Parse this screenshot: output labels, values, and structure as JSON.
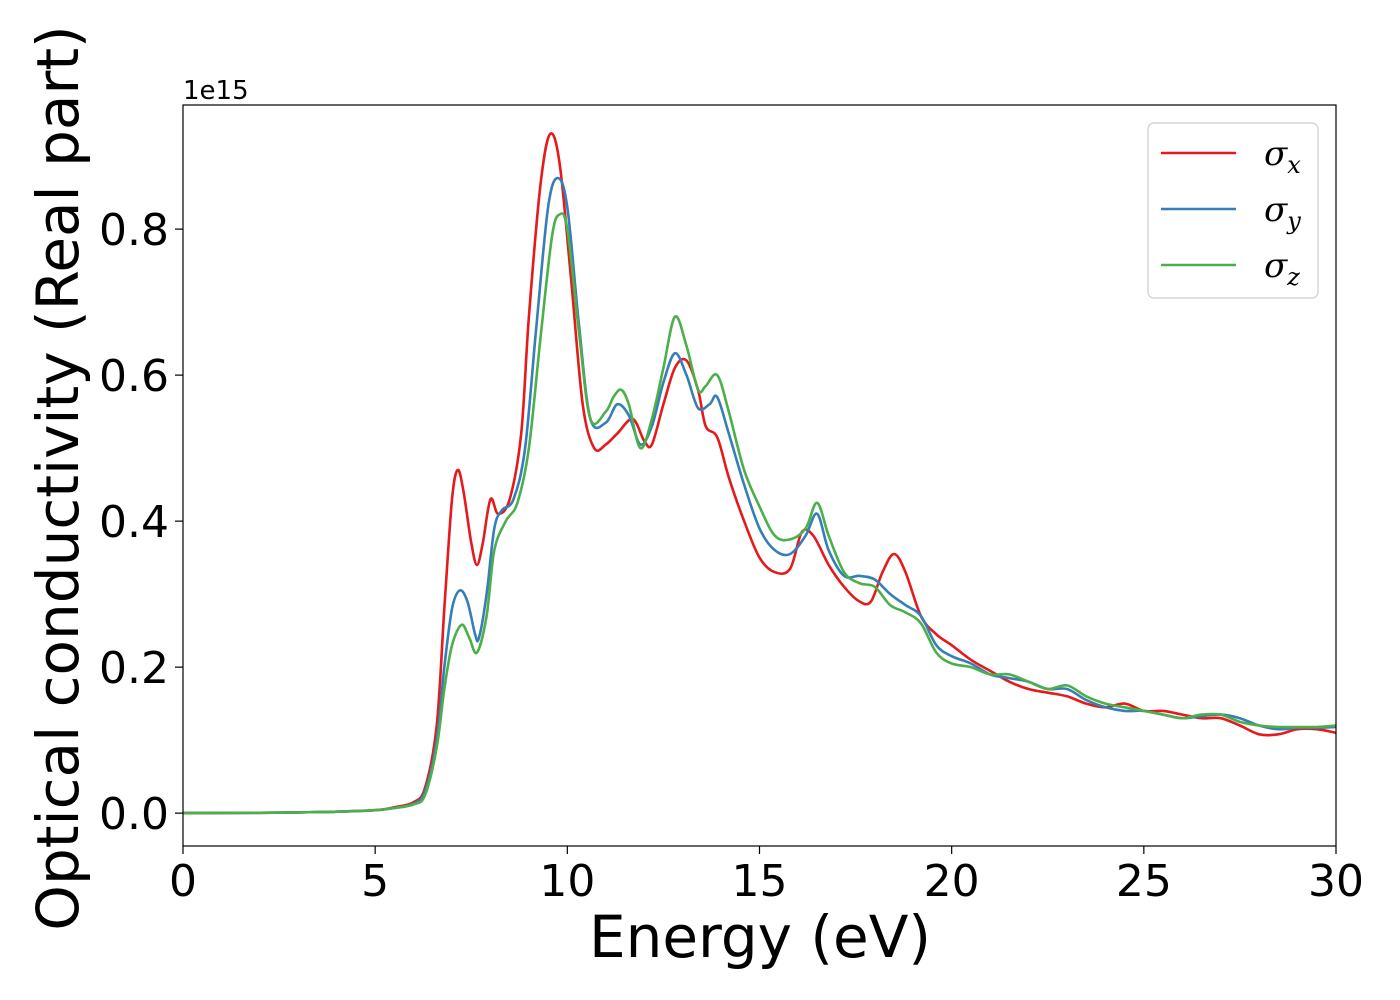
{
  "chart_data": {
    "type": "line",
    "title": "",
    "xlabel": "Energy (eV)",
    "ylabel": "Optical conductivity (Real part)",
    "y_offset_label": "1e15",
    "xlim": [
      0,
      30
    ],
    "ylim": [
      -0.045,
      0.97
    ],
    "xticks": [
      0,
      5,
      10,
      15,
      20,
      25,
      30
    ],
    "xtick_labels": [
      "0",
      "5",
      "10",
      "15",
      "20",
      "25",
      "30"
    ],
    "yticks": [
      0.0,
      0.2,
      0.4,
      0.6,
      0.8
    ],
    "ytick_labels": [
      "0.0",
      "0.2",
      "0.4",
      "0.6",
      "0.8"
    ],
    "grid": false,
    "legend_position": "top-right",
    "series": [
      {
        "name": "σx",
        "legend_symbol": "σ",
        "legend_sub": "x",
        "color": "#e41a1c",
        "points": [
          [
            0,
            0.0
          ],
          [
            2,
            0.0005
          ],
          [
            3,
            0.001
          ],
          [
            4,
            0.002
          ],
          [
            5,
            0.004
          ],
          [
            5.5,
            0.008
          ],
          [
            6.0,
            0.015
          ],
          [
            6.3,
            0.035
          ],
          [
            6.6,
            0.12
          ],
          [
            6.8,
            0.28
          ],
          [
            7.0,
            0.43
          ],
          [
            7.15,
            0.47
          ],
          [
            7.3,
            0.44
          ],
          [
            7.5,
            0.37
          ],
          [
            7.65,
            0.34
          ],
          [
            7.8,
            0.37
          ],
          [
            8.0,
            0.43
          ],
          [
            8.2,
            0.41
          ],
          [
            8.5,
            0.43
          ],
          [
            8.8,
            0.52
          ],
          [
            9.0,
            0.68
          ],
          [
            9.3,
            0.86
          ],
          [
            9.55,
            0.93
          ],
          [
            9.8,
            0.89
          ],
          [
            10.1,
            0.73
          ],
          [
            10.4,
            0.56
          ],
          [
            10.7,
            0.5
          ],
          [
            11.0,
            0.505
          ],
          [
            11.3,
            0.52
          ],
          [
            11.7,
            0.54
          ],
          [
            12.0,
            0.51
          ],
          [
            12.2,
            0.505
          ],
          [
            12.5,
            0.56
          ],
          [
            12.8,
            0.61
          ],
          [
            13.1,
            0.62
          ],
          [
            13.4,
            0.58
          ],
          [
            13.6,
            0.53
          ],
          [
            13.9,
            0.515
          ],
          [
            14.2,
            0.46
          ],
          [
            14.6,
            0.4
          ],
          [
            15.0,
            0.35
          ],
          [
            15.4,
            0.33
          ],
          [
            15.8,
            0.335
          ],
          [
            16.1,
            0.385
          ],
          [
            16.4,
            0.38
          ],
          [
            16.8,
            0.34
          ],
          [
            17.2,
            0.31
          ],
          [
            17.6,
            0.29
          ],
          [
            17.9,
            0.29
          ],
          [
            18.2,
            0.33
          ],
          [
            18.5,
            0.355
          ],
          [
            18.8,
            0.33
          ],
          [
            19.2,
            0.27
          ],
          [
            19.6,
            0.245
          ],
          [
            20.0,
            0.23
          ],
          [
            20.5,
            0.21
          ],
          [
            21.0,
            0.195
          ],
          [
            21.5,
            0.18
          ],
          [
            22.0,
            0.17
          ],
          [
            22.5,
            0.165
          ],
          [
            23.0,
            0.16
          ],
          [
            23.5,
            0.15
          ],
          [
            24.0,
            0.145
          ],
          [
            24.5,
            0.15
          ],
          [
            25.0,
            0.14
          ],
          [
            25.5,
            0.14
          ],
          [
            26.0,
            0.135
          ],
          [
            26.5,
            0.13
          ],
          [
            27.0,
            0.13
          ],
          [
            27.5,
            0.12
          ],
          [
            28.0,
            0.108
          ],
          [
            28.5,
            0.108
          ],
          [
            29.0,
            0.115
          ],
          [
            29.5,
            0.115
          ],
          [
            30.0,
            0.11
          ]
        ]
      },
      {
        "name": "σy",
        "legend_symbol": "σ",
        "legend_sub": "y",
        "color": "#377eb8",
        "points": [
          [
            0,
            0.0
          ],
          [
            2,
            0.0005
          ],
          [
            3,
            0.001
          ],
          [
            4,
            0.002
          ],
          [
            5,
            0.004
          ],
          [
            5.5,
            0.007
          ],
          [
            6.0,
            0.013
          ],
          [
            6.3,
            0.03
          ],
          [
            6.6,
            0.1
          ],
          [
            6.8,
            0.2
          ],
          [
            7.0,
            0.28
          ],
          [
            7.2,
            0.305
          ],
          [
            7.4,
            0.29
          ],
          [
            7.6,
            0.245
          ],
          [
            7.7,
            0.24
          ],
          [
            7.9,
            0.3
          ],
          [
            8.1,
            0.39
          ],
          [
            8.3,
            0.415
          ],
          [
            8.6,
            0.43
          ],
          [
            8.9,
            0.5
          ],
          [
            9.2,
            0.67
          ],
          [
            9.5,
            0.83
          ],
          [
            9.75,
            0.87
          ],
          [
            10.0,
            0.83
          ],
          [
            10.3,
            0.67
          ],
          [
            10.6,
            0.54
          ],
          [
            11.0,
            0.535
          ],
          [
            11.3,
            0.56
          ],
          [
            11.6,
            0.545
          ],
          [
            11.9,
            0.505
          ],
          [
            12.2,
            0.53
          ],
          [
            12.5,
            0.59
          ],
          [
            12.8,
            0.63
          ],
          [
            13.1,
            0.6
          ],
          [
            13.4,
            0.555
          ],
          [
            13.7,
            0.56
          ],
          [
            13.9,
            0.57
          ],
          [
            14.2,
            0.52
          ],
          [
            14.6,
            0.45
          ],
          [
            15.0,
            0.39
          ],
          [
            15.4,
            0.36
          ],
          [
            15.8,
            0.355
          ],
          [
            16.2,
            0.38
          ],
          [
            16.5,
            0.41
          ],
          [
            16.8,
            0.36
          ],
          [
            17.2,
            0.325
          ],
          [
            17.6,
            0.325
          ],
          [
            18.0,
            0.32
          ],
          [
            18.4,
            0.3
          ],
          [
            18.8,
            0.285
          ],
          [
            19.2,
            0.27
          ],
          [
            19.6,
            0.23
          ],
          [
            20.0,
            0.215
          ],
          [
            20.5,
            0.205
          ],
          [
            21.0,
            0.19
          ],
          [
            21.5,
            0.185
          ],
          [
            22.0,
            0.18
          ],
          [
            22.5,
            0.17
          ],
          [
            23.0,
            0.17
          ],
          [
            23.5,
            0.155
          ],
          [
            24.0,
            0.145
          ],
          [
            24.5,
            0.14
          ],
          [
            25.0,
            0.14
          ],
          [
            25.5,
            0.135
          ],
          [
            26.0,
            0.13
          ],
          [
            26.5,
            0.133
          ],
          [
            27.0,
            0.135
          ],
          [
            27.5,
            0.13
          ],
          [
            28.0,
            0.12
          ],
          [
            28.5,
            0.115
          ],
          [
            29.0,
            0.117
          ],
          [
            29.5,
            0.117
          ],
          [
            30.0,
            0.118
          ]
        ]
      },
      {
        "name": "σz",
        "legend_symbol": "σ",
        "legend_sub": "z",
        "color": "#4daf4a",
        "points": [
          [
            0,
            0.0
          ],
          [
            2,
            0.0005
          ],
          [
            3,
            0.001
          ],
          [
            4,
            0.002
          ],
          [
            5,
            0.004
          ],
          [
            5.5,
            0.007
          ],
          [
            6.0,
            0.012
          ],
          [
            6.3,
            0.025
          ],
          [
            6.6,
            0.09
          ],
          [
            6.8,
            0.17
          ],
          [
            7.0,
            0.23
          ],
          [
            7.25,
            0.258
          ],
          [
            7.45,
            0.24
          ],
          [
            7.65,
            0.22
          ],
          [
            7.9,
            0.27
          ],
          [
            8.1,
            0.36
          ],
          [
            8.4,
            0.4
          ],
          [
            8.7,
            0.425
          ],
          [
            9.0,
            0.5
          ],
          [
            9.3,
            0.65
          ],
          [
            9.6,
            0.79
          ],
          [
            9.8,
            0.82
          ],
          [
            10.0,
            0.8
          ],
          [
            10.3,
            0.66
          ],
          [
            10.6,
            0.54
          ],
          [
            11.0,
            0.55
          ],
          [
            11.2,
            0.57
          ],
          [
            11.4,
            0.58
          ],
          [
            11.6,
            0.56
          ],
          [
            11.9,
            0.5
          ],
          [
            12.2,
            0.54
          ],
          [
            12.5,
            0.61
          ],
          [
            12.8,
            0.68
          ],
          [
            13.1,
            0.64
          ],
          [
            13.4,
            0.58
          ],
          [
            13.6,
            0.585
          ],
          [
            13.9,
            0.6
          ],
          [
            14.2,
            0.55
          ],
          [
            14.6,
            0.47
          ],
          [
            15.0,
            0.42
          ],
          [
            15.4,
            0.38
          ],
          [
            15.8,
            0.375
          ],
          [
            16.2,
            0.39
          ],
          [
            16.5,
            0.425
          ],
          [
            16.8,
            0.38
          ],
          [
            17.2,
            0.33
          ],
          [
            17.6,
            0.315
          ],
          [
            18.0,
            0.31
          ],
          [
            18.4,
            0.285
          ],
          [
            18.8,
            0.275
          ],
          [
            19.2,
            0.26
          ],
          [
            19.6,
            0.22
          ],
          [
            20.0,
            0.205
          ],
          [
            20.5,
            0.2
          ],
          [
            21.0,
            0.19
          ],
          [
            21.5,
            0.19
          ],
          [
            22.0,
            0.18
          ],
          [
            22.5,
            0.17
          ],
          [
            23.0,
            0.175
          ],
          [
            23.5,
            0.16
          ],
          [
            24.0,
            0.15
          ],
          [
            24.5,
            0.145
          ],
          [
            25.0,
            0.14
          ],
          [
            25.5,
            0.135
          ],
          [
            26.0,
            0.13
          ],
          [
            26.5,
            0.135
          ],
          [
            27.0,
            0.135
          ],
          [
            27.5,
            0.125
          ],
          [
            28.0,
            0.12
          ],
          [
            28.5,
            0.118
          ],
          [
            29.0,
            0.118
          ],
          [
            29.5,
            0.118
          ],
          [
            30.0,
            0.12
          ]
        ]
      }
    ]
  }
}
